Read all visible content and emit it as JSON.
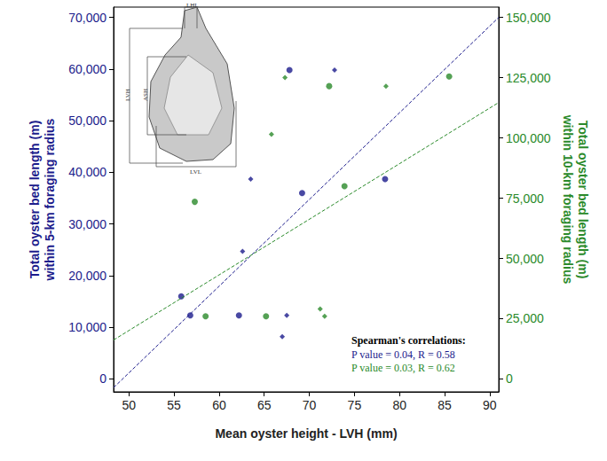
{
  "chart_data": {
    "type": "scatter",
    "x_label": "Mean oyster height - LVH (mm)",
    "y_label": "Total oyster bed length (m)\nwithin 5-km foraging radius",
    "y2_label": "Total oyster bed length (m)\nwithin 10-km foraging radius",
    "xlim": [
      48.3,
      91
    ],
    "xticks": [
      50,
      55,
      60,
      65,
      70,
      75,
      80,
      85,
      90
    ],
    "ylim": [
      -2500,
      72000
    ],
    "yticks": [
      0,
      {
        "value": 10000,
        "label": "10,000"
      },
      {
        "value": 20000,
        "label": "20,000"
      },
      {
        "value": 30000,
        "label": "30,000"
      },
      {
        "value": 40000,
        "label": "40,000"
      },
      {
        "value": 50000,
        "label": "50,000"
      },
      {
        "value": 60000,
        "label": "60,000"
      },
      {
        "value": 70000,
        "label": "70,000"
      }
    ],
    "y2lim": [
      -5357,
      154286
    ],
    "y2ticks": [
      0,
      {
        "value": 25000,
        "label": "25,000"
      },
      {
        "value": 50000,
        "label": "50,000"
      },
      {
        "value": 75000,
        "label": "75,000"
      },
      {
        "value": 100000,
        "label": "100,000"
      },
      {
        "value": 125000,
        "label": "125,000"
      },
      {
        "value": 150000,
        "label": "150,000"
      }
    ],
    "grid": false,
    "series": [
      {
        "type": "scatter",
        "color": "#1c1c8c",
        "marker": "circle",
        "axis": "y",
        "x": [
          55.8,
          56.8,
          62.2,
          67.8,
          69.2,
          78.4
        ],
        "values": [
          16000,
          12300,
          12300,
          59800,
          36000,
          38700
        ]
      },
      {
        "type": "scatter",
        "color": "#1c1c8c",
        "marker": "diamond",
        "axis": "y",
        "x": [
          62.6,
          63.5,
          67.0,
          67.5,
          72.8
        ],
        "values": [
          24700,
          38700,
          8200,
          12300,
          59800
        ]
      },
      {
        "type": "scatter",
        "color": "#2a8a2a",
        "marker": "circle",
        "axis": "y2",
        "x": [
          57.3,
          58.5,
          65.2,
          72.2,
          73.9,
          85.5
        ],
        "values": [
          73500,
          26000,
          26000,
          121500,
          80000,
          125500
        ]
      },
      {
        "type": "scatter",
        "color": "#2a8a2a",
        "marker": "diamond",
        "axis": "y2",
        "x": [
          65.8,
          67.3,
          71.2,
          71.7,
          78.5
        ],
        "values": [
          101500,
          125000,
          29000,
          26000,
          121500
        ]
      },
      {
        "type": "line",
        "color": "#1c1c8c",
        "line_style": "dashed",
        "axis": "y",
        "x": [
          48.3,
          91
        ],
        "values": [
          -1679,
          70000
        ]
      },
      {
        "type": "line",
        "color": "#2a8a2a",
        "line_style": "dashed",
        "axis": "y2",
        "x": [
          48.3,
          91
        ],
        "values": [
          16170,
          114700
        ]
      }
    ],
    "annotations": {
      "stats_title": "Spearman's correlations:",
      "stats": [
        {
          "text": "P value = 0.04, R = 0.58",
          "color": "#1c1c8c"
        },
        {
          "text": "P value = 0.03, R = 0.62",
          "color": "#2a8a2a"
        }
      ],
      "inset_labels": {
        "top": "LHL",
        "left_outer": "LVH",
        "left_inner": "ASH",
        "bottom": "LVL"
      }
    }
  }
}
